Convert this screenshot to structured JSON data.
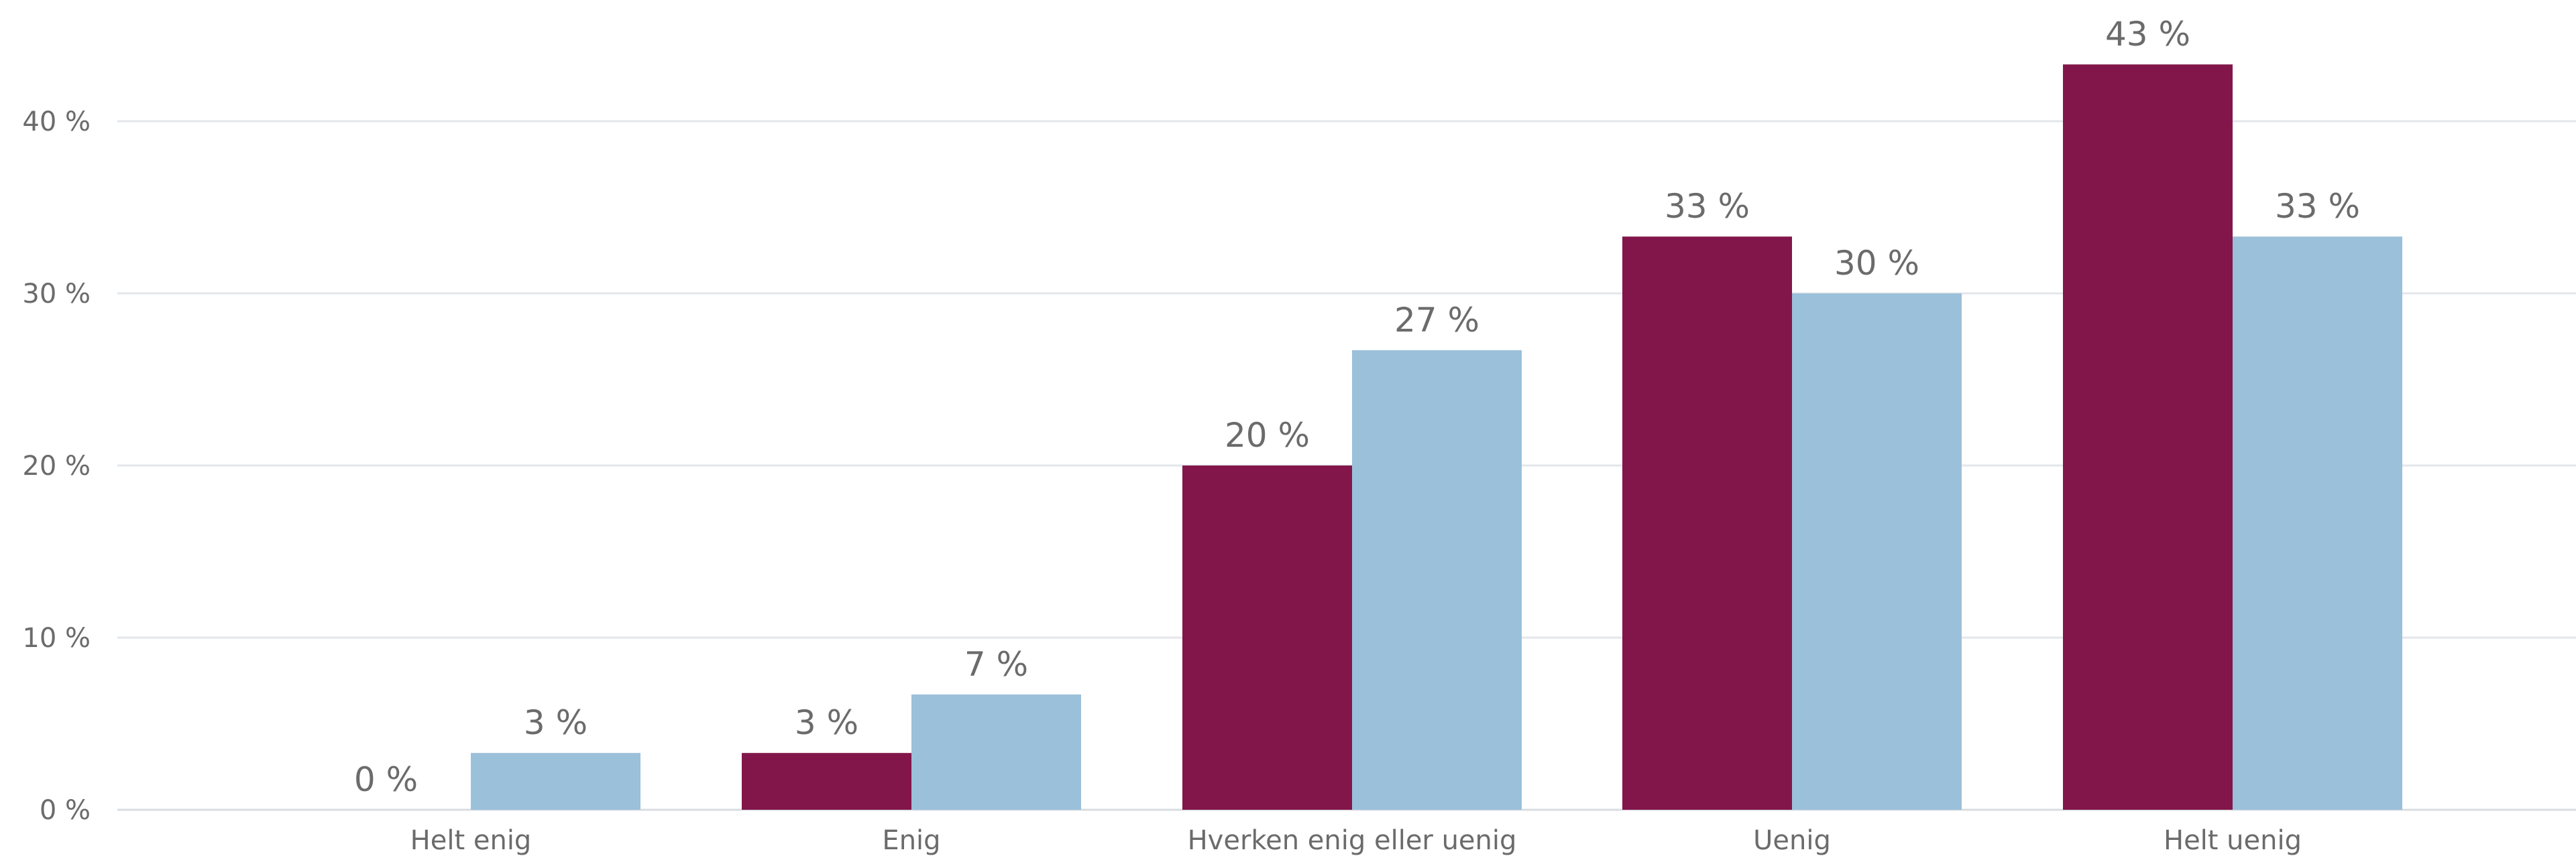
{
  "chart_data": {
    "type": "bar",
    "categories": [
      "Helt enig",
      "Enig",
      "Hverken enig eller uenig",
      "Uenig",
      "Helt uenig"
    ],
    "series": [
      {
        "values": [
          0,
          3.3,
          20,
          33.3,
          43.3
        ],
        "labels": [
          "0 %",
          "3 %",
          "20 %",
          "33 %",
          "43 %"
        ],
        "color": "#82164a"
      },
      {
        "values": [
          3.3,
          6.7,
          26.7,
          30,
          33.3
        ],
        "labels": [
          "3 %",
          "7 %",
          "27 %",
          "30 %",
          "33 %"
        ],
        "color": "#9bc0da"
      }
    ],
    "y_ticks": [
      0,
      10,
      20,
      30,
      40
    ],
    "y_tick_labels": [
      "0 %",
      "10 %",
      "20 %",
      "30 %",
      "40 %"
    ],
    "ylim": [
      0,
      45
    ],
    "grid": true,
    "legend": "none"
  }
}
